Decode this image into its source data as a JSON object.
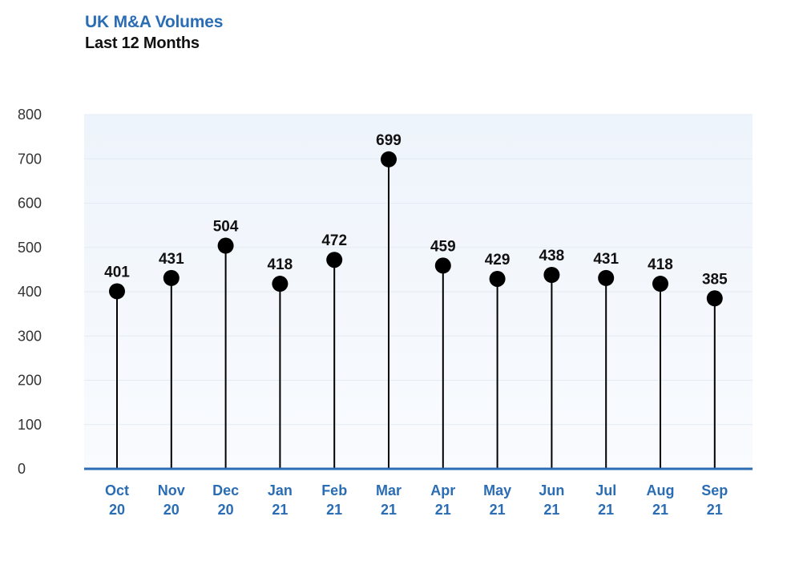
{
  "chart_data": {
    "type": "lollipop",
    "title": "UK M&A Volumes",
    "subtitle": "Last 12 Months",
    "categories": [
      [
        "Oct",
        "20"
      ],
      [
        "Nov",
        "20"
      ],
      [
        "Dec",
        "20"
      ],
      [
        "Jan",
        "21"
      ],
      [
        "Feb",
        "21"
      ],
      [
        "Mar",
        "21"
      ],
      [
        "Apr",
        "21"
      ],
      [
        "May",
        "21"
      ],
      [
        "Jun",
        "21"
      ],
      [
        "Jul",
        "21"
      ],
      [
        "Aug",
        "21"
      ],
      [
        "Sep",
        "21"
      ]
    ],
    "values": [
      401,
      431,
      504,
      418,
      472,
      699,
      459,
      429,
      438,
      431,
      418,
      385
    ],
    "ylim": [
      0,
      800
    ],
    "yticks": [
      0,
      100,
      200,
      300,
      400,
      500,
      600,
      700,
      800
    ],
    "grid": true
  },
  "colors": {
    "title": "#2a6db4",
    "axis": "#2a6db4",
    "marker": "#000000",
    "plot_bg_top": "#eef4fb"
  }
}
